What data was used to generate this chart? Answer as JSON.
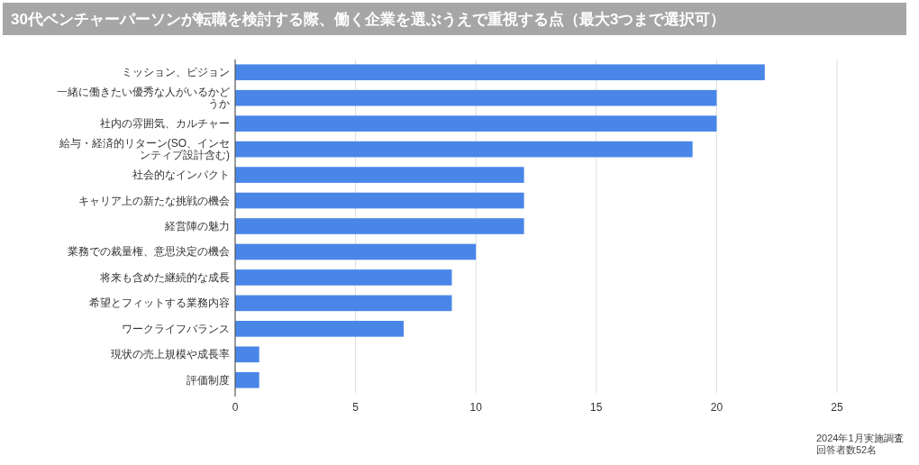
{
  "chart_data": {
    "type": "bar",
    "orientation": "horizontal",
    "title": "30代ベンチャーパーソンが転職を検討する際、働く企業を選ぶうえで重視する点（最大3つまで選択可）",
    "categories": [
      "ミッション、ビジョン",
      "一緒に働きたい優秀な人がいるかどうか",
      "社内の雰囲気、カルチャー",
      "給与・経済的リターン(SO、インセンティブ設計含む)",
      "社会的なインパクト",
      "キャリア上の新たな挑戦の機会",
      "経営陣の魅力",
      "業務での裁量権、意思決定の機会",
      "将来も含めた継続的な成長",
      "希望とフィットする業務内容",
      "ワークライフバランス",
      "現状の売上規模や成長率",
      "評価制度"
    ],
    "values": [
      22,
      20,
      20,
      19,
      12,
      12,
      12,
      10,
      9,
      9,
      7,
      1,
      1
    ],
    "color": "#4a86e8",
    "xlim": [
      0,
      25
    ],
    "xticks": [
      0,
      5,
      10,
      15,
      20,
      25
    ],
    "grid": "x",
    "annotations": [
      "2024年1月実施調査",
      "回答者数52名"
    ]
  }
}
